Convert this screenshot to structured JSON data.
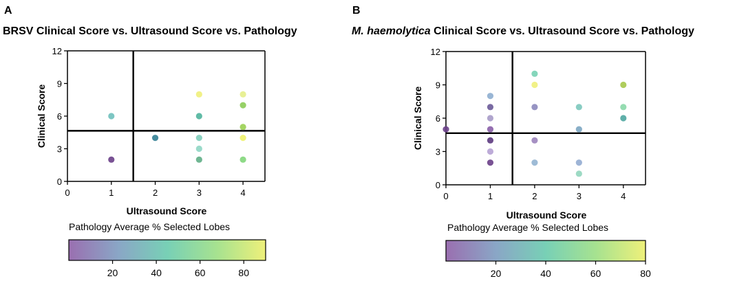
{
  "colorbar_colors": [
    "#9a6fb0",
    "#8aa6c6",
    "#78d0b6",
    "#a6e290",
    "#eef07a"
  ],
  "chart_data": [
    {
      "type": "scatter",
      "panel": "A",
      "title": "BRSV Clinical Score vs. Ultrasound Score vs. Pathology",
      "title_italic": "",
      "xlabel": "Ultrasound Score",
      "ylabel": "Clinical Score",
      "xlim": [
        0,
        4.5
      ],
      "ylim": [
        0,
        12
      ],
      "xticks": [
        0,
        1,
        2,
        3,
        4
      ],
      "yticks": [
        0,
        3,
        6,
        9,
        12
      ],
      "divider_x": 1.5,
      "divider_y": 4.65,
      "colorbar": {
        "label": "Pathology Average % Selected Lobes",
        "min": 0,
        "max": 90,
        "ticks": [
          20,
          40,
          60,
          80
        ]
      },
      "points": [
        {
          "x": 1,
          "y": 6,
          "color": "#6fc0bd"
        },
        {
          "x": 1,
          "y": 2,
          "color": "#6a3f88"
        },
        {
          "x": 2,
          "y": 4,
          "color": "#327f93"
        },
        {
          "x": 3,
          "y": 8,
          "color": "#f0f07a"
        },
        {
          "x": 3,
          "y": 6,
          "color": "#4fb49c"
        },
        {
          "x": 3,
          "y": 4,
          "color": "#7fcdbb"
        },
        {
          "x": 3,
          "y": 3,
          "color": "#8fd6c4"
        },
        {
          "x": 3,
          "y": 2,
          "color": "#5fae86"
        },
        {
          "x": 4,
          "y": 8,
          "color": "#e6ee8a"
        },
        {
          "x": 4,
          "y": 7,
          "color": "#8ccc56"
        },
        {
          "x": 4,
          "y": 5,
          "color": "#9ad052"
        },
        {
          "x": 4,
          "y": 4,
          "color": "#eef26a"
        },
        {
          "x": 4,
          "y": 2,
          "color": "#82d67a"
        }
      ]
    },
    {
      "type": "scatter",
      "panel": "B",
      "title": " Clinical Score vs. Ultrasound Score vs. Pathology",
      "title_italic": "M. haemolytica",
      "xlabel": "Ultrasound Score",
      "ylabel": "Clinical Score",
      "xlim": [
        0,
        4.5
      ],
      "ylim": [
        0,
        12
      ],
      "xticks": [
        0,
        1,
        2,
        3,
        4
      ],
      "yticks": [
        0,
        3,
        6,
        9,
        12
      ],
      "divider_x": 1.5,
      "divider_y": 4.65,
      "colorbar": {
        "label": "Pathology Average % Selected Lobes",
        "min": 0,
        "max": 80,
        "ticks": [
          20,
          40,
          60,
          80
        ]
      },
      "points": [
        {
          "x": 0,
          "y": 5,
          "color": "#6a3f88"
        },
        {
          "x": 1,
          "y": 8,
          "color": "#8eaed0"
        },
        {
          "x": 1,
          "y": 7,
          "color": "#6a5a98"
        },
        {
          "x": 1,
          "y": 6,
          "color": "#a79bc8"
        },
        {
          "x": 1,
          "y": 5,
          "color": "#8a5fa8"
        },
        {
          "x": 1,
          "y": 4,
          "color": "#5c3a80"
        },
        {
          "x": 1,
          "y": 3,
          "color": "#b6a2d4"
        },
        {
          "x": 1,
          "y": 2,
          "color": "#6a3f88"
        },
        {
          "x": 2,
          "y": 10,
          "color": "#78d2b4"
        },
        {
          "x": 2,
          "y": 9,
          "color": "#f0f07a"
        },
        {
          "x": 2,
          "y": 7,
          "color": "#8c88bc"
        },
        {
          "x": 2,
          "y": 4,
          "color": "#9c84bc"
        },
        {
          "x": 2,
          "y": 2,
          "color": "#94b4d2"
        },
        {
          "x": 3,
          "y": 7,
          "color": "#7cc8bc"
        },
        {
          "x": 3,
          "y": 5,
          "color": "#7ca6c2"
        },
        {
          "x": 3,
          "y": 2,
          "color": "#94acd2"
        },
        {
          "x": 3,
          "y": 1,
          "color": "#92d6be"
        },
        {
          "x": 4,
          "y": 9,
          "color": "#a6c84a"
        },
        {
          "x": 4,
          "y": 7,
          "color": "#8ad8a8"
        },
        {
          "x": 4,
          "y": 6,
          "color": "#4ea6a0"
        }
      ]
    }
  ]
}
